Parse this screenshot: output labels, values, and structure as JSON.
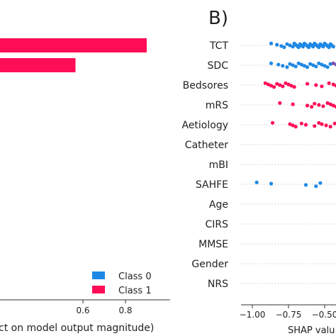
{
  "chart_data": [
    {
      "type": "bar",
      "orientation": "horizontal",
      "xlabel_visible": "ct on model output magnitude)",
      "xticks": [
        "0.6",
        "0.8"
      ],
      "xtick_values": [
        0.6,
        0.8
      ],
      "bars": [
        {
          "series": "Class 1",
          "start": 0.0,
          "end": 0.9
        },
        {
          "series": "Class 1",
          "start": 0.0,
          "end": 0.565
        }
      ],
      "legend": {
        "placement": "bottom-right",
        "items": [
          {
            "label": "Class 0",
            "color": "#1e88e5"
          },
          {
            "label": "Class 1",
            "color": "#ff0d57"
          }
        ]
      }
    },
    {
      "type": "scatter",
      "panel_label": "B)",
      "xlabel_visible": "SHAP valu",
      "xticks": [
        "−1.00",
        "−0.75",
        "−0.50"
      ],
      "xtick_values": [
        -1.0,
        -0.75,
        -0.5
      ],
      "features": [
        "TCT",
        "SDC",
        "Bedsores",
        "mRS",
        "Aetiology",
        "Catheter",
        "mBI",
        "SAHFE",
        "Age",
        "CIRS",
        "MMSE",
        "Gender",
        "NRS"
      ],
      "colors": {
        "low": "#1e88e5",
        "mid": "#7b52ae",
        "high": "#ff0d57"
      },
      "points": {
        "TCT": {
          "color": "low",
          "values": [
            -0.87,
            -0.83,
            -0.8,
            -0.78,
            -0.76,
            -0.74,
            -0.72,
            -0.71,
            -0.7,
            -0.69,
            -0.68,
            -0.67,
            -0.66,
            -0.65,
            -0.64,
            -0.63,
            -0.62,
            -0.61,
            -0.6,
            -0.59,
            -0.58,
            -0.57,
            -0.56,
            -0.55,
            -0.54,
            -0.53,
            -0.52,
            -0.51,
            -0.5,
            -0.49,
            -0.48,
            -0.47,
            -0.46,
            -0.45,
            -0.44
          ]
        },
        "SDC": {
          "color": "low",
          "values": [
            -0.87,
            -0.82,
            -0.79,
            -0.76,
            -0.74,
            -0.72,
            -0.7,
            -0.68,
            -0.66,
            -0.64,
            -0.62,
            -0.6,
            -0.58,
            -0.56,
            -0.54,
            -0.52,
            -0.5,
            -0.48,
            -0.46
          ]
        },
        "SDC_mid": {
          "color": "mid",
          "values": [
            -0.44,
            -0.42,
            -0.41
          ]
        },
        "Bedsores": {
          "color": "high",
          "values": [
            -0.91,
            -0.89,
            -0.87,
            -0.85,
            -0.83,
            -0.81,
            -0.79,
            -0.77,
            -0.75,
            -0.73,
            -0.71,
            -0.62,
            -0.56,
            -0.52,
            -0.47,
            -0.44,
            -0.42
          ]
        },
        "mRS": {
          "color": "high",
          "values": [
            -0.81,
            -0.72,
            -0.62,
            -0.59,
            -0.57,
            -0.54,
            -0.51,
            -0.48,
            -0.46,
            -0.44,
            -0.42
          ]
        },
        "Aetiology": {
          "color": "high",
          "values": [
            -0.86,
            -0.74,
            -0.72,
            -0.7,
            -0.66,
            -0.63,
            -0.57,
            -0.54,
            -0.52,
            -0.49,
            -0.46,
            -0.43
          ]
        },
        "SAHFE": {
          "color": "low",
          "values": [
            -0.97,
            -0.87,
            -0.63,
            -0.56,
            -0.53
          ]
        }
      }
    }
  ]
}
